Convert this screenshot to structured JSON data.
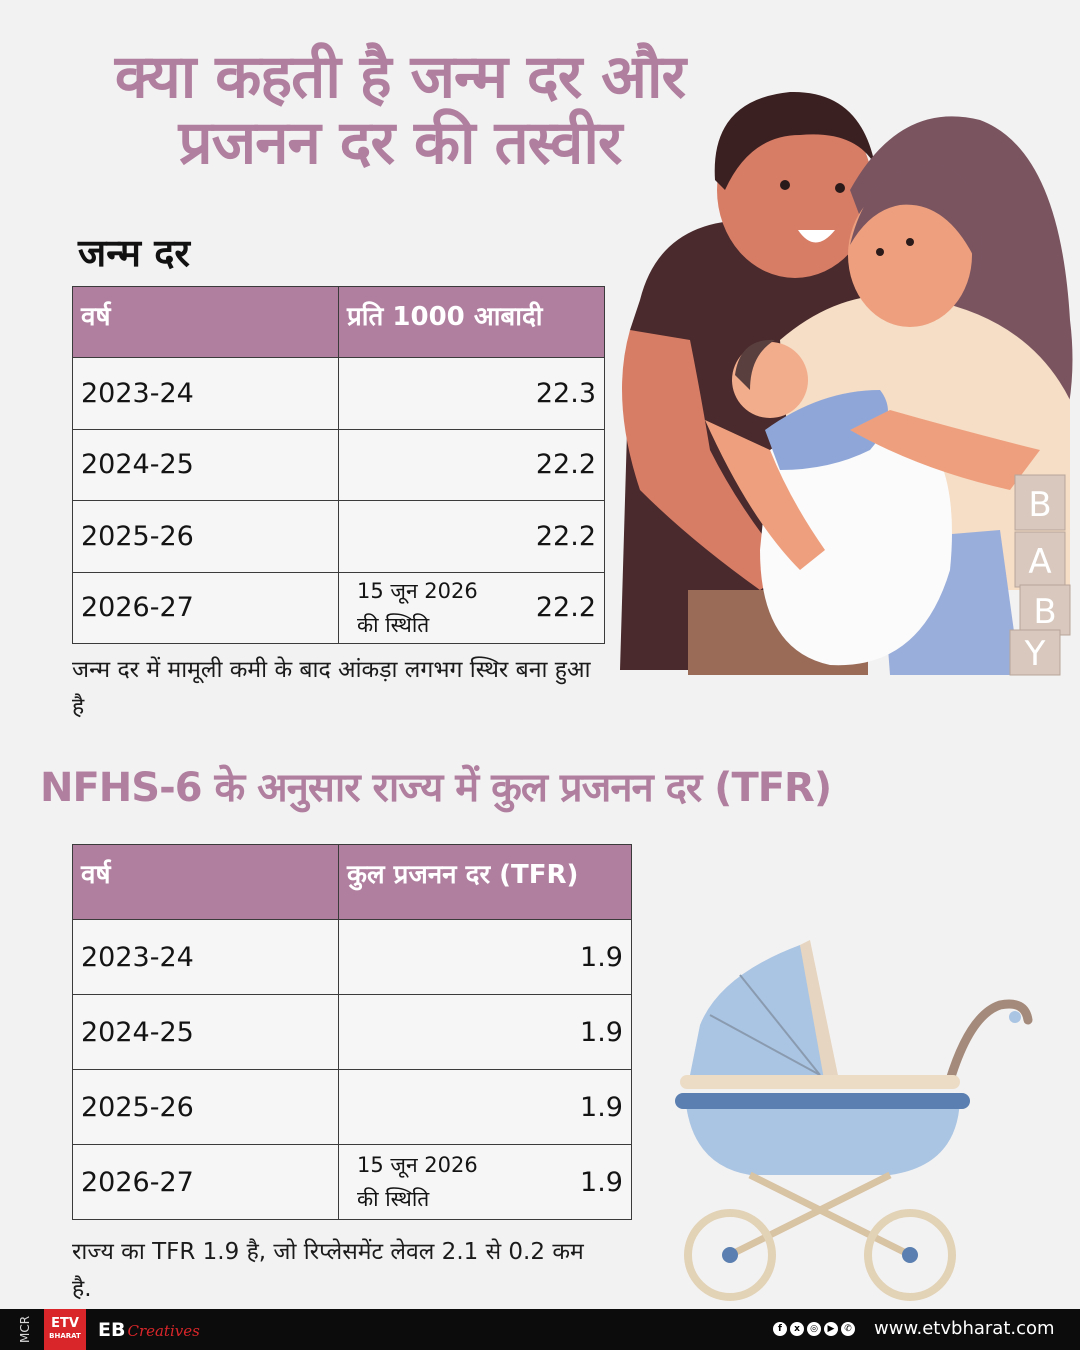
{
  "title": {
    "line1": "क्या कहती है जन्म दर और",
    "line2": "प्रजनन दर की तस्वीर"
  },
  "birth_rate": {
    "heading": "जन्म दर",
    "columns": [
      "वर्ष",
      "प्रति 1000 आबादी"
    ],
    "rows": [
      {
        "year": "2023-24",
        "note": "",
        "value": "22.3"
      },
      {
        "year": "2024-25",
        "note": "",
        "value": "22.2"
      },
      {
        "year": "2025-26",
        "note": "",
        "value": "22.2"
      },
      {
        "year": "2026-27",
        "note_line1": "15 जून 2026",
        "note_line2": "की स्थिति",
        "value": "22.2"
      }
    ],
    "caption": "जन्म दर में मामूली कमी के बाद आंकड़ा लगभग स्थिर बना हुआ है"
  },
  "tfr": {
    "heading": "NFHS-6 के अनुसार राज्य में कुल प्रजनन दर (TFR)",
    "columns": [
      "वर्ष",
      "कुल प्रजनन दर (TFR)"
    ],
    "rows": [
      {
        "year": "2023-24",
        "value": "1.9"
      },
      {
        "year": "2024-25",
        "value": "1.9"
      },
      {
        "year": "2025-26",
        "value": "1.9"
      },
      {
        "year": "2026-27",
        "note_line1": "15 जून 2026",
        "note_line2": "की स्थिति",
        "value": "1.9"
      }
    ],
    "caption": "राज्य का TFR 1.9 है, जो रिप्लेसमेंट लेवल 2.1 से 0.2 कम है."
  },
  "illustrations": {
    "blocks_letters": [
      "B",
      "A",
      "B",
      "Y"
    ]
  },
  "footer": {
    "mcr": "MCR",
    "logo_text": "ETV",
    "logo_sub": "BHARAT",
    "eb": "EB",
    "creatives": "Creatives",
    "social_icons": [
      "facebook-icon",
      "x-icon",
      "instagram-icon",
      "youtube-icon",
      "whatsapp-icon"
    ],
    "website": "www.etvbharat.com"
  },
  "colors": {
    "accent": "#b07f9f",
    "background": "#f3f2f2",
    "footer": "#0c0c0c",
    "logo_red": "#d9262a"
  }
}
